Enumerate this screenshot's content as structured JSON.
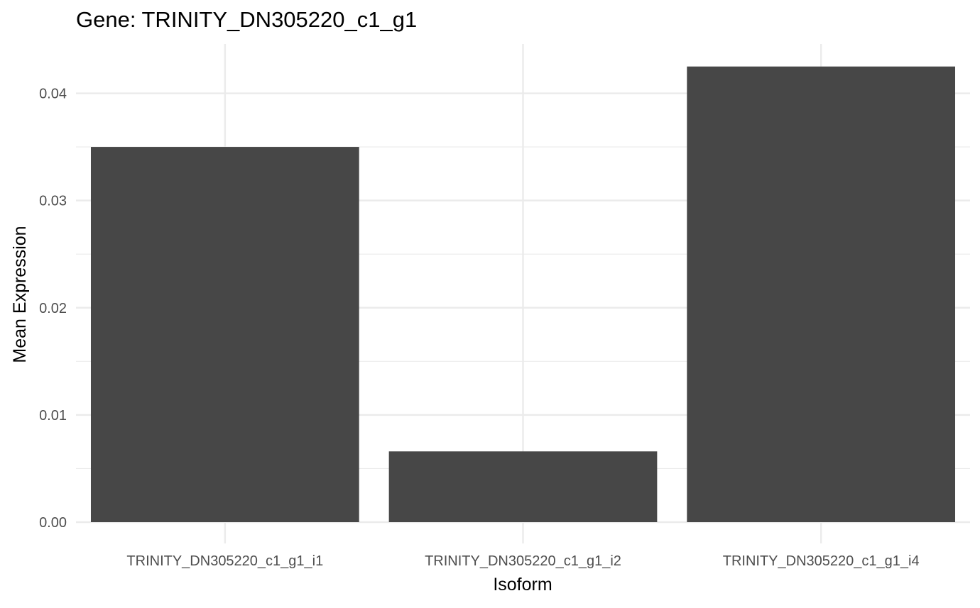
{
  "chart_data": {
    "type": "bar",
    "title": "Gene: TRINITY_DN305220_c1_g1",
    "xlabel": "Isoform",
    "ylabel": "Mean Expression",
    "categories": [
      "TRINITY_DN305220_c1_g1_i1",
      "TRINITY_DN305220_c1_g1_i2",
      "TRINITY_DN305220_c1_g1_i4"
    ],
    "values": [
      0.035,
      0.0066,
      0.0425
    ],
    "ylim": [
      0,
      0.0446
    ],
    "yticks": [
      0,
      0.01,
      0.02,
      0.03,
      0.04
    ],
    "ytick_labels": [
      "0.00",
      "0.01",
      "0.02",
      "0.03",
      "0.04"
    ],
    "bar_color": "#474747",
    "grid": true,
    "grid_color": "#ebebeb",
    "legend": "none"
  }
}
